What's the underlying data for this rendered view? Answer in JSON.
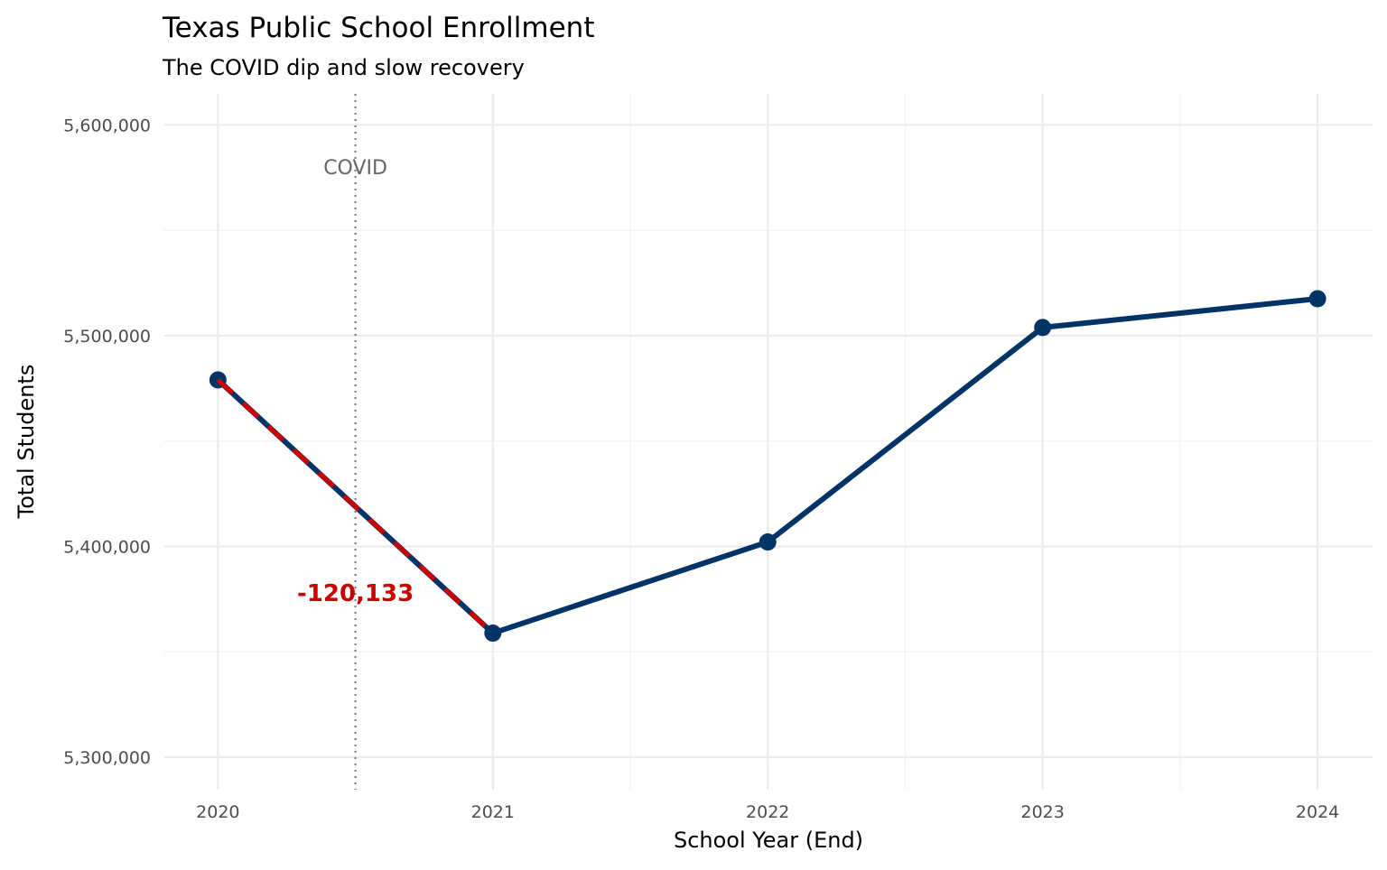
{
  "chart_data": {
    "type": "line",
    "title": "Texas Public School Enrollment",
    "subtitle": "The COVID dip and slow recovery",
    "xlabel": "School Year (End)",
    "ylabel": "Total Students",
    "x": [
      2020,
      2021,
      2022,
      2023,
      2024
    ],
    "values": [
      5479000,
      5358867,
      5402100,
      5503850,
      5517500
    ],
    "xticks": [
      "2020",
      "2021",
      "2022",
      "2023",
      "2024"
    ],
    "yticks": [
      5300000,
      5400000,
      5500000,
      5600000
    ],
    "ytick_labels": [
      "5,300,000",
      "5,400,000",
      "5,500,000",
      "5,600,000"
    ],
    "ylim": [
      5284600,
      5614700
    ],
    "xlim": [
      2019.805,
      2024.2
    ],
    "grid": true,
    "line_color": "#003366",
    "highlight_color": "#CC0000",
    "covid_marker": {
      "x": 2020.5,
      "label": "COVID",
      "label_y": 5580000,
      "color": "#808080"
    },
    "annotation": {
      "text": "-120,133",
      "x": 2020.5,
      "y": 5378000,
      "color": "#CC0000"
    },
    "highlight_segment": [
      2020,
      2021
    ]
  }
}
